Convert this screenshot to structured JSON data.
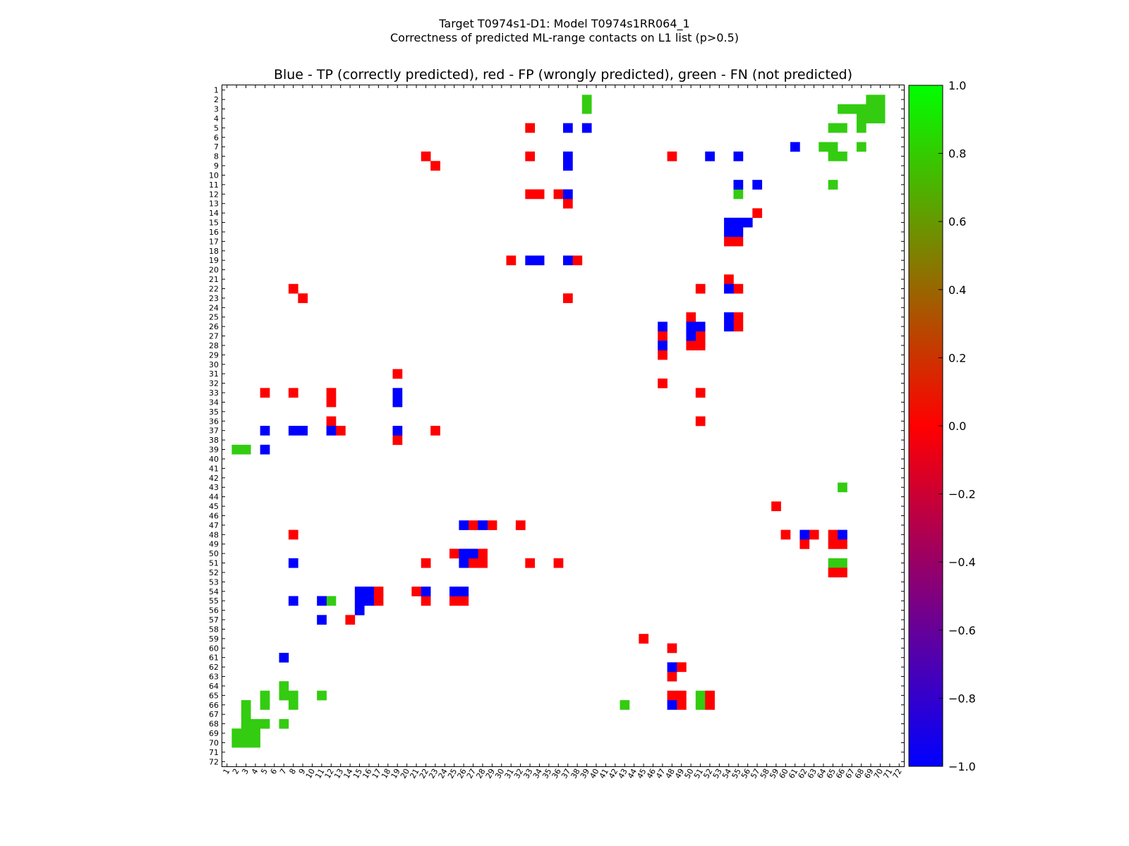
{
  "figure": {
    "suptitle_line1": "Target T0974s1-D1: Model T0974s1RR064_1",
    "suptitle_line2": "Correctness of predicted ML-range contacts on L1 list (p>0.5)"
  },
  "chart_data": {
    "type": "heatmap",
    "title": "Blue - TP (correctly predicted), red - FP (wrongly predicted), green - FN (not predicted)",
    "xlabel": "",
    "ylabel": "",
    "n_residues": 72,
    "x_ticks": [
      1,
      2,
      3,
      4,
      5,
      6,
      7,
      8,
      9,
      10,
      11,
      12,
      13,
      14,
      15,
      16,
      17,
      18,
      19,
      20,
      21,
      22,
      23,
      24,
      25,
      26,
      27,
      28,
      29,
      30,
      31,
      32,
      33,
      34,
      35,
      36,
      37,
      38,
      39,
      40,
      41,
      42,
      43,
      44,
      45,
      46,
      47,
      48,
      49,
      50,
      51,
      52,
      53,
      54,
      55,
      56,
      57,
      58,
      59,
      60,
      61,
      62,
      63,
      64,
      65,
      66,
      67,
      68,
      69,
      70,
      71,
      72
    ],
    "y_ticks": [
      1,
      2,
      3,
      4,
      5,
      6,
      7,
      8,
      9,
      10,
      11,
      12,
      13,
      14,
      15,
      16,
      17,
      18,
      19,
      20,
      21,
      22,
      23,
      24,
      25,
      26,
      27,
      28,
      29,
      30,
      31,
      32,
      33,
      34,
      35,
      36,
      37,
      38,
      39,
      40,
      41,
      42,
      43,
      44,
      45,
      46,
      47,
      48,
      49,
      50,
      51,
      52,
      53,
      54,
      55,
      56,
      57,
      58,
      59,
      60,
      61,
      62,
      63,
      64,
      65,
      66,
      67,
      68,
      69,
      70,
      71,
      72
    ],
    "colorbar": {
      "range": [
        -1.0,
        1.0
      ],
      "colors": {
        "-1": "#0000ff",
        "0": "#ff0000",
        "1": "#00ff00"
      },
      "ticks": [
        1.0,
        0.8,
        0.6,
        0.4,
        0.2,
        0.0,
        -0.2,
        -0.4,
        -0.6,
        -0.8,
        -1.0
      ],
      "tick_labels": [
        "1.0",
        "0.8",
        "0.6",
        "0.4",
        "0.2",
        "0.0",
        "−0.2",
        "−0.4",
        "−0.6",
        "−0.8",
        "−1.0"
      ]
    },
    "value_colors": {
      "TP": "#0000ff",
      "FP": "#ff0000",
      "FN": "#33cc11"
    },
    "cells": {
      "TP": [
        [
          5,
          37
        ],
        [
          5,
          39
        ],
        [
          7,
          61
        ],
        [
          8,
          37
        ],
        [
          8,
          52
        ],
        [
          8,
          55
        ],
        [
          9,
          37
        ],
        [
          11,
          55
        ],
        [
          11,
          57
        ],
        [
          12,
          37
        ],
        [
          15,
          54
        ],
        [
          15,
          55
        ],
        [
          15,
          56
        ],
        [
          16,
          54
        ],
        [
          16,
          55
        ],
        [
          19,
          33
        ],
        [
          19,
          34
        ],
        [
          19,
          37
        ],
        [
          22,
          54
        ],
        [
          25,
          54
        ],
        [
          26,
          47
        ],
        [
          26,
          50
        ],
        [
          26,
          51
        ],
        [
          26,
          54
        ],
        [
          27,
          50
        ],
        [
          28,
          47
        ],
        [
          33,
          19
        ],
        [
          34,
          19
        ],
        [
          37,
          5
        ],
        [
          37,
          8
        ],
        [
          37,
          9
        ],
        [
          37,
          12
        ],
        [
          37,
          19
        ],
        [
          39,
          5
        ],
        [
          47,
          26
        ],
        [
          47,
          28
        ],
        [
          48,
          62
        ],
        [
          48,
          66
        ],
        [
          50,
          26
        ],
        [
          50,
          27
        ],
        [
          51,
          8
        ],
        [
          51,
          26
        ],
        [
          54,
          15
        ],
        [
          54,
          16
        ],
        [
          54,
          22
        ],
        [
          54,
          25
        ],
        [
          54,
          26
        ],
        [
          55,
          8
        ],
        [
          55,
          11
        ],
        [
          55,
          15
        ],
        [
          55,
          16
        ],
        [
          56,
          15
        ],
        [
          57,
          11
        ],
        [
          61,
          7
        ],
        [
          62,
          48
        ],
        [
          66,
          48
        ]
      ],
      "FP": [
        [
          5,
          33
        ],
        [
          8,
          22
        ],
        [
          8,
          33
        ],
        [
          8,
          48
        ],
        [
          9,
          23
        ],
        [
          12,
          33
        ],
        [
          12,
          34
        ],
        [
          12,
          36
        ],
        [
          13,
          37
        ],
        [
          14,
          57
        ],
        [
          17,
          54
        ],
        [
          17,
          55
        ],
        [
          19,
          31
        ],
        [
          19,
          38
        ],
        [
          21,
          54
        ],
        [
          22,
          8
        ],
        [
          22,
          51
        ],
        [
          22,
          55
        ],
        [
          23,
          9
        ],
        [
          23,
          37
        ],
        [
          25,
          50
        ],
        [
          25,
          55
        ],
        [
          26,
          55
        ],
        [
          27,
          47
        ],
        [
          27,
          51
        ],
        [
          28,
          50
        ],
        [
          28,
          51
        ],
        [
          29,
          47
        ],
        [
          31,
          19
        ],
        [
          32,
          47
        ],
        [
          33,
          5
        ],
        [
          33,
          8
        ],
        [
          33,
          12
        ],
        [
          33,
          51
        ],
        [
          34,
          12
        ],
        [
          36,
          12
        ],
        [
          36,
          51
        ],
        [
          37,
          13
        ],
        [
          37,
          23
        ],
        [
          38,
          19
        ],
        [
          45,
          59
        ],
        [
          47,
          27
        ],
        [
          47,
          29
        ],
        [
          47,
          32
        ],
        [
          48,
          8
        ],
        [
          48,
          60
        ],
        [
          48,
          63
        ],
        [
          48,
          65
        ],
        [
          49,
          62
        ],
        [
          49,
          65
        ],
        [
          49,
          66
        ],
        [
          50,
          25
        ],
        [
          50,
          28
        ],
        [
          51,
          22
        ],
        [
          51,
          27
        ],
        [
          51,
          28
        ],
        [
          51,
          33
        ],
        [
          51,
          36
        ],
        [
          52,
          65
        ],
        [
          52,
          66
        ],
        [
          54,
          17
        ],
        [
          54,
          21
        ],
        [
          55,
          17
        ],
        [
          55,
          22
        ],
        [
          55,
          25
        ],
        [
          55,
          26
        ],
        [
          57,
          14
        ],
        [
          59,
          45
        ],
        [
          60,
          48
        ],
        [
          62,
          49
        ],
        [
          63,
          48
        ],
        [
          65,
          48
        ],
        [
          65,
          49
        ],
        [
          65,
          52
        ],
        [
          66,
          49
        ],
        [
          66,
          52
        ]
      ],
      "FN": [
        [
          2,
          39
        ],
        [
          2,
          69
        ],
        [
          2,
          70
        ],
        [
          3,
          39
        ],
        [
          3,
          66
        ],
        [
          3,
          67
        ],
        [
          3,
          68
        ],
        [
          3,
          69
        ],
        [
          3,
          70
        ],
        [
          4,
          68
        ],
        [
          4,
          69
        ],
        [
          4,
          70
        ],
        [
          5,
          65
        ],
        [
          5,
          66
        ],
        [
          5,
          68
        ],
        [
          7,
          64
        ],
        [
          7,
          65
        ],
        [
          7,
          68
        ],
        [
          8,
          65
        ],
        [
          8,
          66
        ],
        [
          11,
          65
        ],
        [
          12,
          55
        ],
        [
          39,
          2
        ],
        [
          39,
          3
        ],
        [
          43,
          66
        ],
        [
          51,
          65
        ],
        [
          51,
          66
        ],
        [
          55,
          12
        ],
        [
          64,
          7
        ],
        [
          65,
          5
        ],
        [
          65,
          7
        ],
        [
          65,
          8
        ],
        [
          65,
          11
        ],
        [
          65,
          51
        ],
        [
          66,
          3
        ],
        [
          66,
          5
        ],
        [
          66,
          8
        ],
        [
          66,
          43
        ],
        [
          66,
          51
        ],
        [
          67,
          3
        ],
        [
          68,
          3
        ],
        [
          68,
          4
        ],
        [
          68,
          5
        ],
        [
          68,
          7
        ],
        [
          69,
          2
        ],
        [
          69,
          3
        ],
        [
          69,
          4
        ],
        [
          70,
          2
        ],
        [
          70,
          3
        ],
        [
          70,
          4
        ]
      ]
    }
  }
}
